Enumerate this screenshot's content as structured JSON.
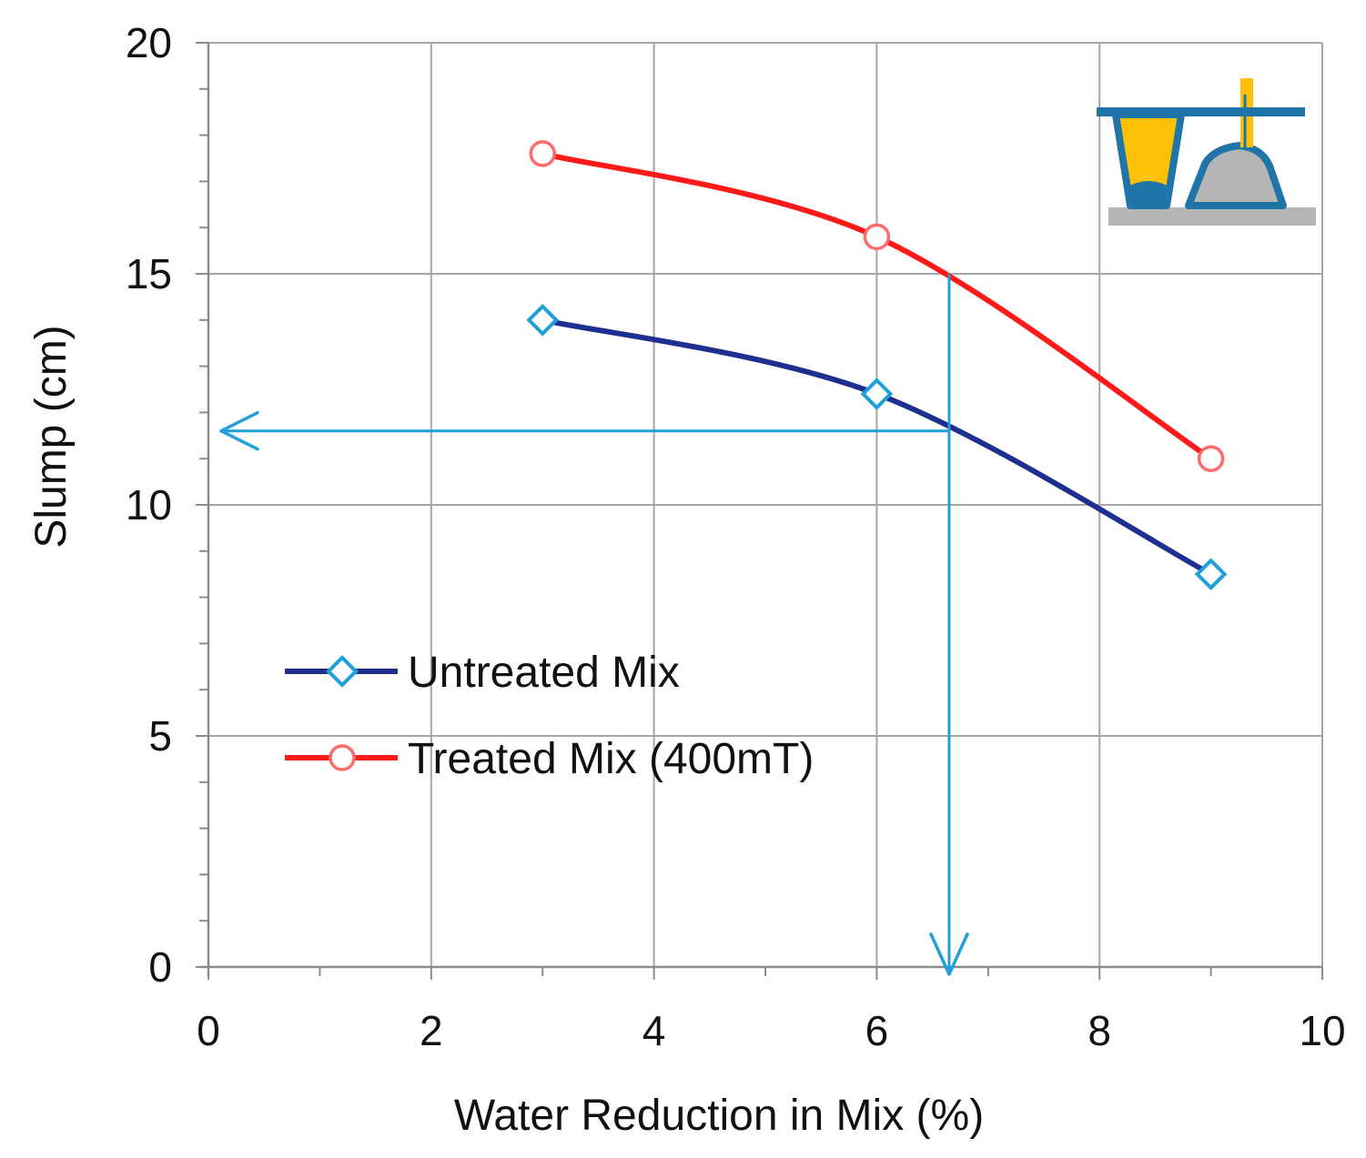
{
  "chart_data": {
    "type": "line",
    "title": "",
    "xlabel": "Water Reduction in Mix (%)",
    "ylabel": "Slump (cm)",
    "xlim": [
      0,
      10
    ],
    "ylim": [
      0,
      20
    ],
    "x_ticks": [
      0,
      2,
      4,
      6,
      8,
      10
    ],
    "y_ticks": [
      0,
      5,
      10,
      15,
      20
    ],
    "x_tick_labels": [
      "0",
      "2",
      "4",
      "6",
      "8",
      "10"
    ],
    "y_tick_labels": [
      "0",
      "5",
      "10",
      "15",
      "20"
    ],
    "grid": true,
    "legend_position": "center-left",
    "series": [
      {
        "name": "Untreated Mix",
        "marker": "diamond",
        "line_color": "#1f2f8f",
        "marker_color": "#1fa0d8",
        "x": [
          3,
          6,
          9
        ],
        "y": [
          14.0,
          12.4,
          8.5
        ]
      },
      {
        "name": "Treated Mix (400mT)",
        "marker": "circle",
        "line_color": "#ff1a1a",
        "marker_color": "#ff6b6b",
        "x": [
          3,
          6,
          9
        ],
        "y": [
          17.6,
          15.8,
          11.0
        ]
      }
    ],
    "annotations": [
      {
        "type": "reference-arrows",
        "color": "#1fa0d8",
        "description": "vertical arrow from treated curve at slump 15 down to x axis; horizontal arrow from untreated curve to y axis",
        "x": 6.65,
        "y_start": 15.0,
        "y_target": 11.6
      }
    ],
    "inset_icon": "slump-test-cone-icon"
  },
  "colors": {
    "grid": "#a6a6a6",
    "axis": "#8c8c8c",
    "arrow": "#1fa0d8",
    "icon_blue": "#1f74a8",
    "icon_yellow": "#ffc107",
    "icon_gray": "#b5b5b5"
  }
}
